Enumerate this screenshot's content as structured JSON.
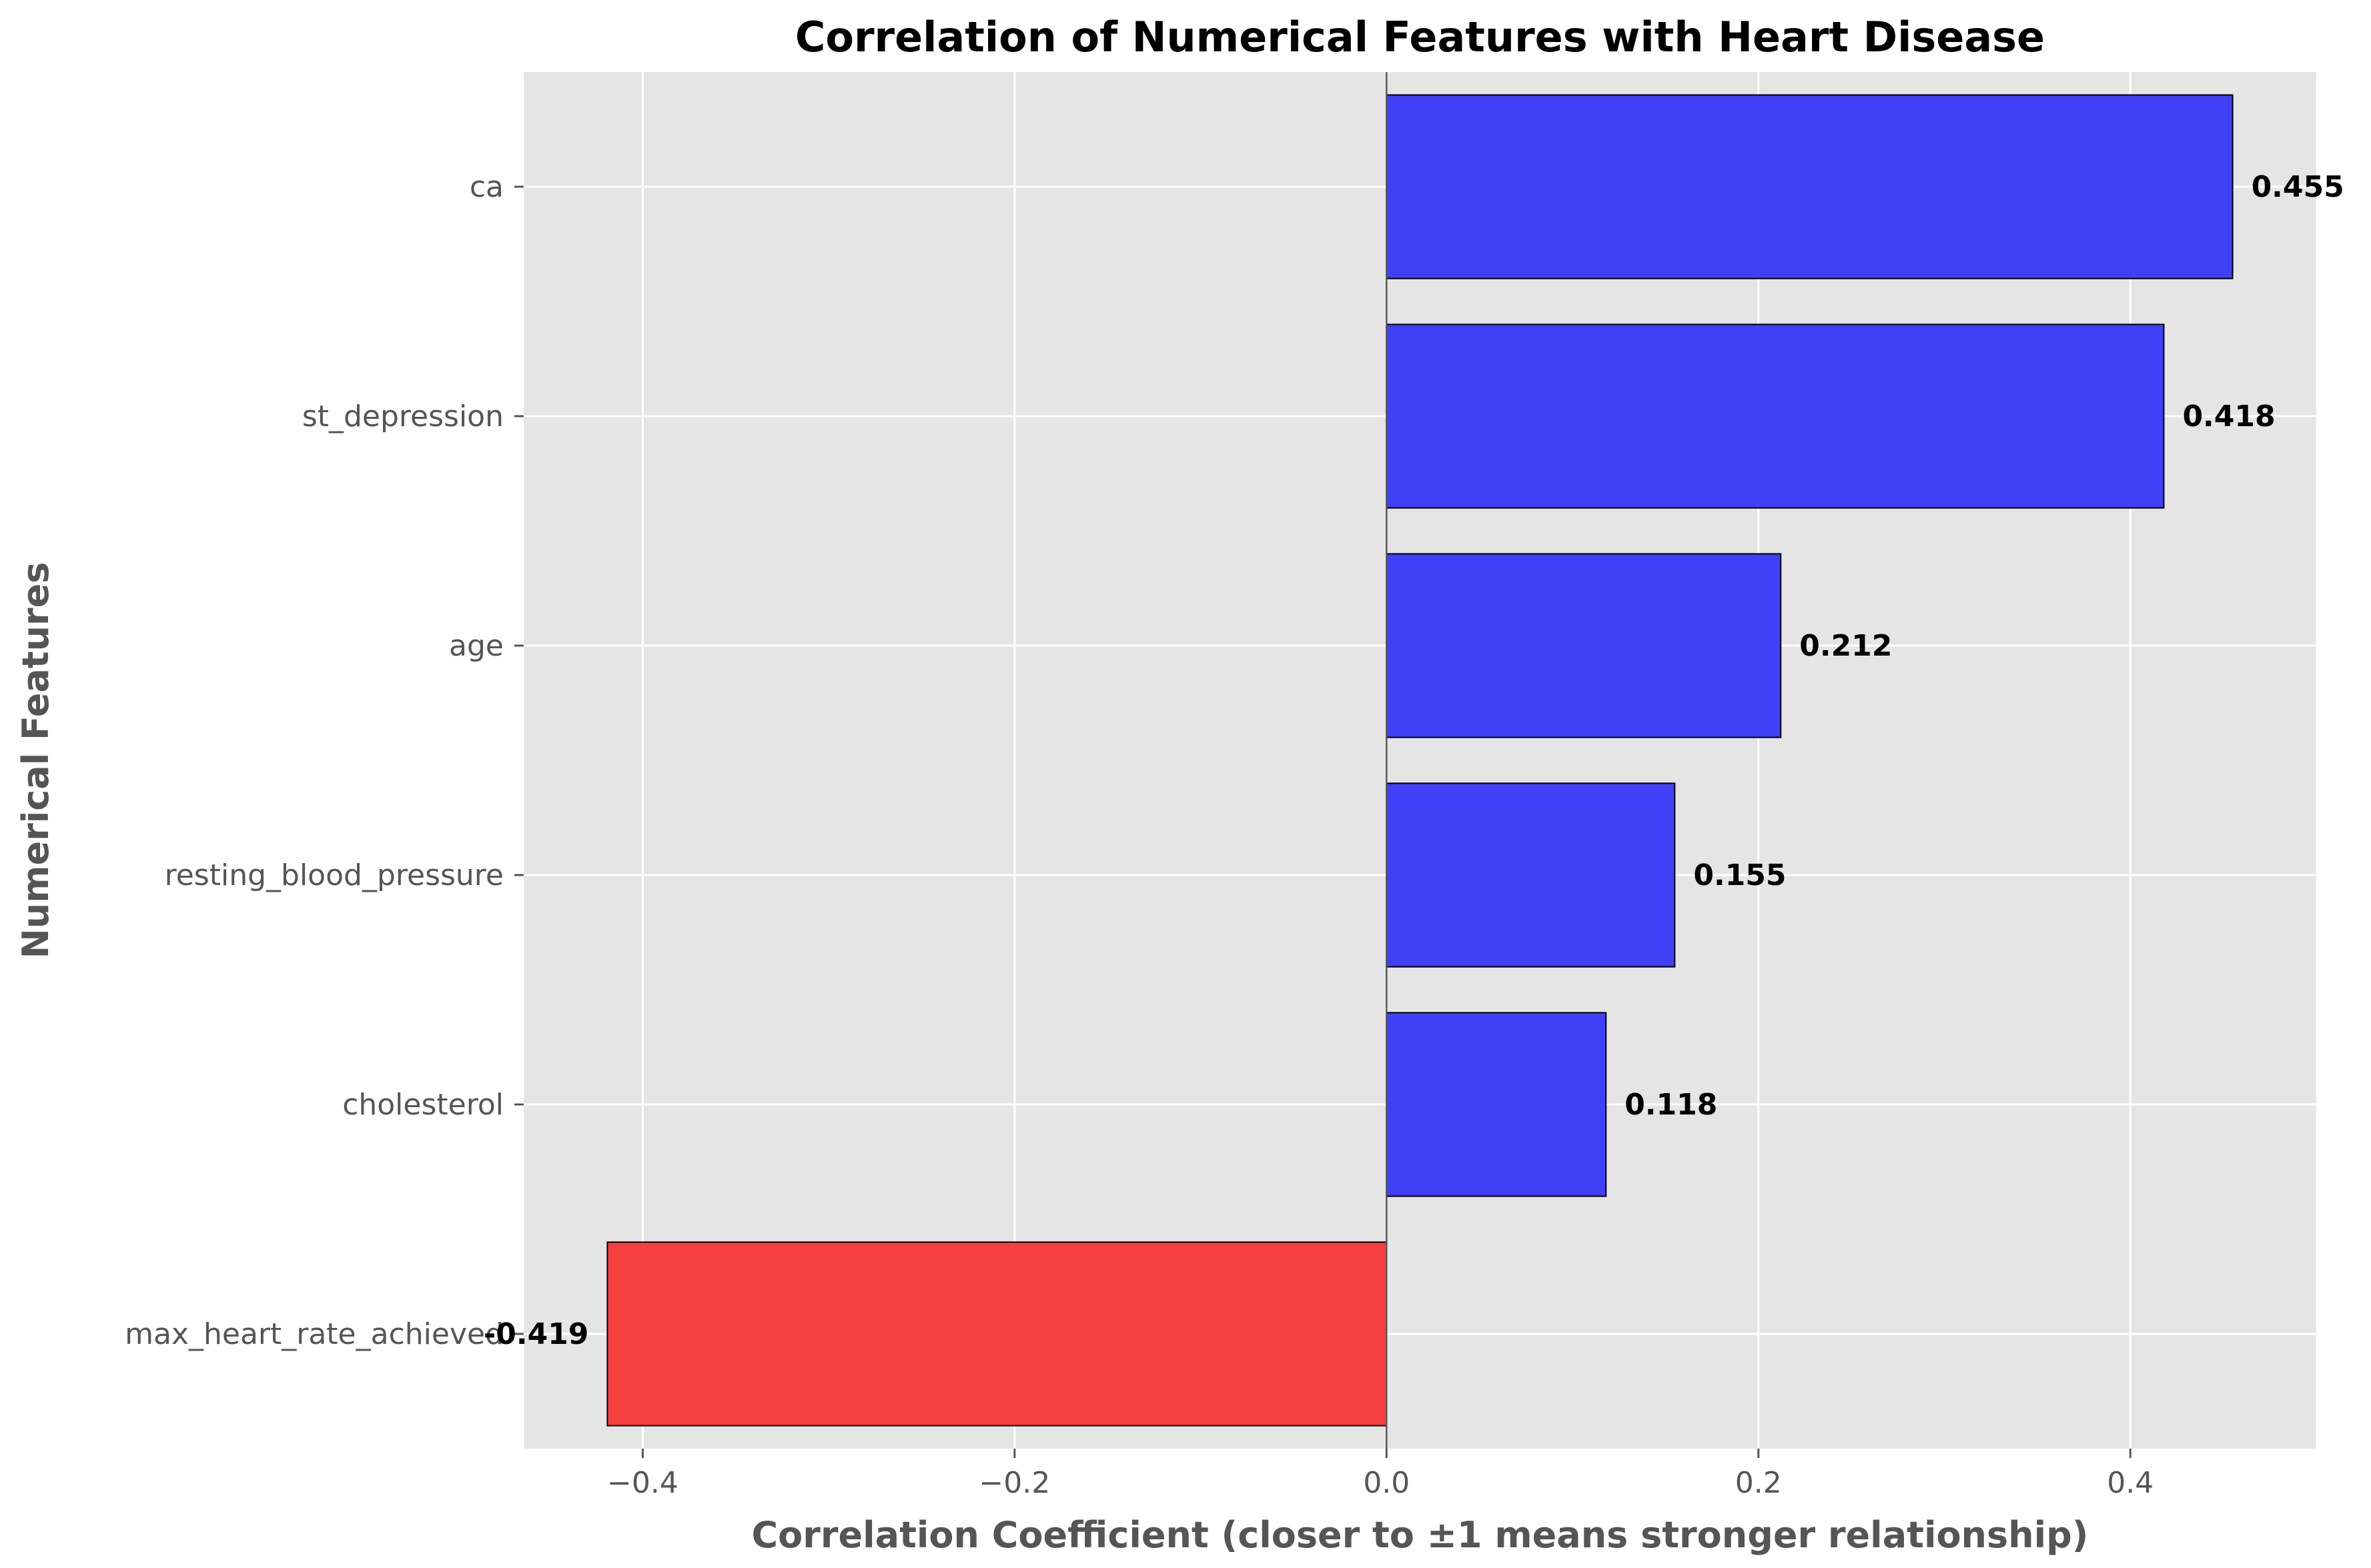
{
  "chart_data": {
    "type": "bar",
    "orientation": "horizontal",
    "title": "Correlation of Numerical Features with Heart Disease",
    "xlabel": "Correlation Coefficient (closer to ±1 means stronger relationship)",
    "ylabel": "Numerical Features",
    "categories": [
      "ca",
      "st_depression",
      "age",
      "resting_blood_pressure",
      "cholesterol",
      "max_heart_rate_achieved"
    ],
    "values": [
      0.455,
      0.418,
      0.212,
      0.155,
      0.118,
      -0.419
    ],
    "value_labels": [
      "0.455",
      "0.418",
      "0.212",
      "0.155",
      "0.118",
      "-0.419"
    ],
    "xlim": [
      -0.464,
      0.5
    ],
    "xticks": [
      -0.4,
      -0.2,
      0.0,
      0.2,
      0.4
    ],
    "xtick_labels": [
      "−0.4",
      "−0.2",
      "0.0",
      "0.2",
      "0.4"
    ],
    "grid": true,
    "zero_line": true,
    "colors": {
      "positive": "#4040f6",
      "negative": "#f64040",
      "background": "#e5e5e5",
      "grid": "#ffffff",
      "edge": "#000000"
    }
  }
}
